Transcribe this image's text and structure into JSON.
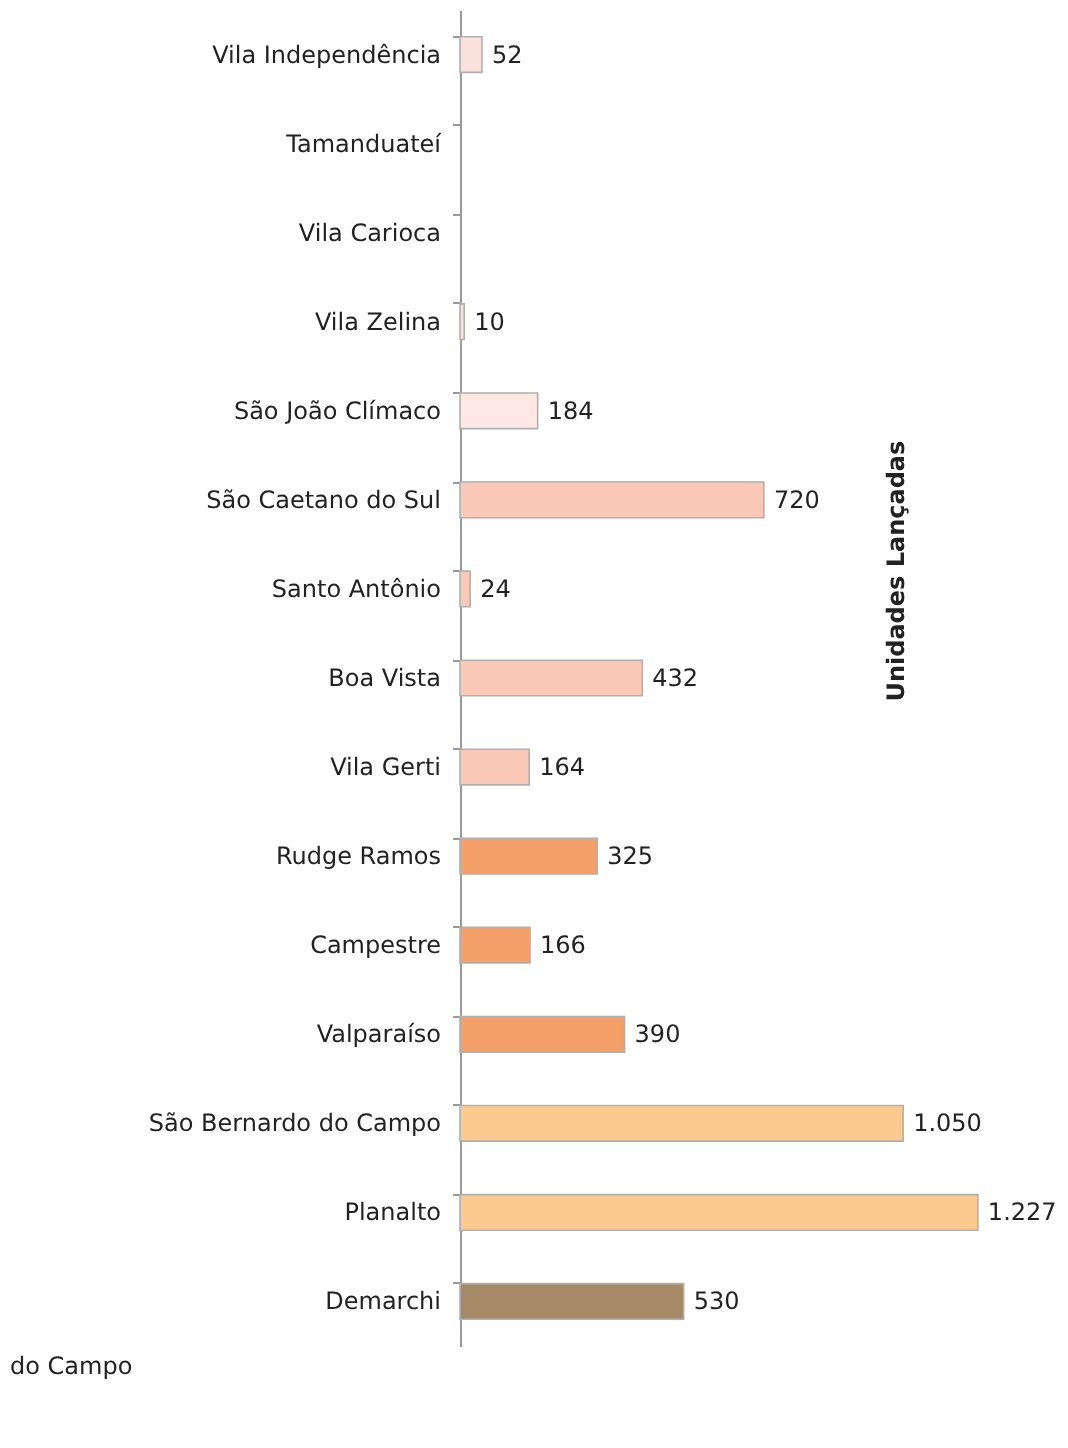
{
  "chart_data": {
    "type": "bar",
    "orientation": "horizontal",
    "categories": [
      "Vila Independência",
      "Tamanduateí",
      "Vila Carioca",
      "Vila Zelina",
      "São João Clímaco",
      "São Caetano do Sul",
      "Santo Antônio",
      "Boa Vista",
      "Vila Gerti",
      "Rudge Ramos",
      "Campestre",
      "Valparaíso",
      "São Bernardo do Campo",
      "Planalto",
      "Demarchi"
    ],
    "values": [
      52,
      null,
      null,
      10,
      184,
      720,
      24,
      432,
      164,
      325,
      166,
      390,
      1050,
      1227,
      530
    ],
    "colors": [
      "#fbe1dc",
      "#fbe1dc",
      "#fbe1dc",
      "#fbe1dc",
      "#fde8e3",
      "#f9c8b6",
      "#f9c8b6",
      "#f9c8b6",
      "#f9c8b6",
      "#f4a068",
      "#f4a068",
      "#f4a068",
      "#fcc98e",
      "#fcc98e",
      "#a68a68"
    ],
    "value_labels": [
      "52",
      null,
      null,
      "10",
      "184",
      "720",
      "24",
      "432",
      "164",
      "325",
      "166",
      "390",
      "1.050",
      "1.227",
      "530"
    ],
    "annotations": [
      "Unidades Lançadas",
      "do Campo"
    ],
    "grid": false
  }
}
